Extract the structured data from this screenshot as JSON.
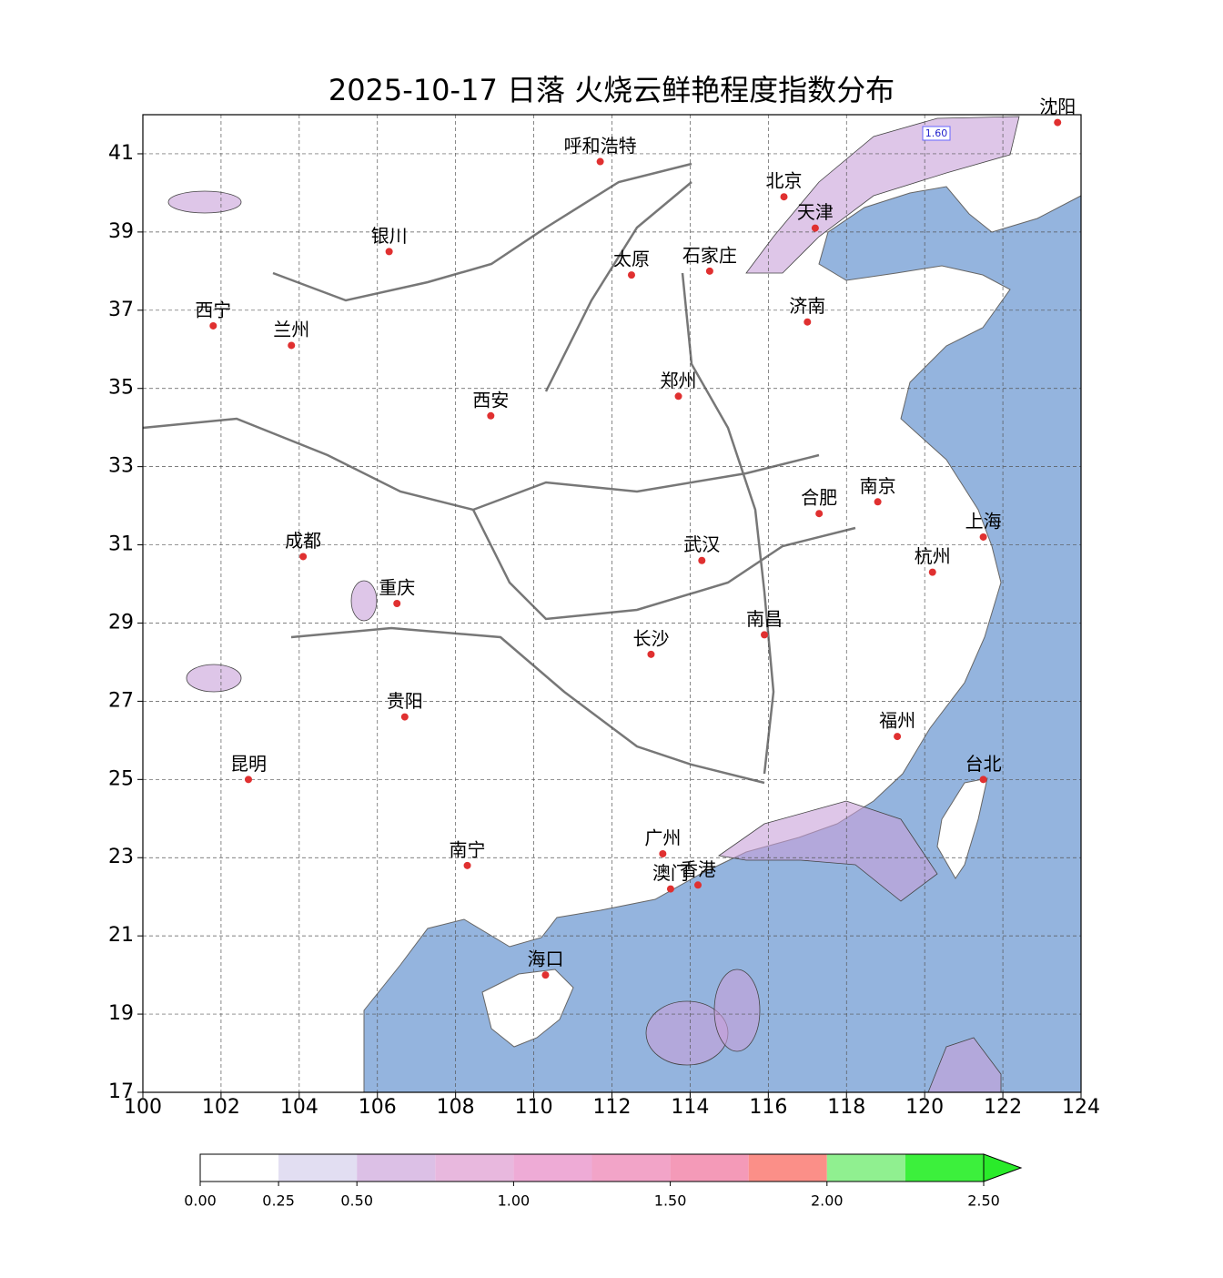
{
  "header": {
    "title": "2025-10-17 日落 火烧云鲜艳程度指数分布"
  },
  "map": {
    "xlim": [
      100,
      124
    ],
    "ylim": [
      17,
      42
    ],
    "xticks": [
      100,
      102,
      104,
      106,
      108,
      110,
      112,
      114,
      116,
      118,
      120,
      122,
      124
    ],
    "yticks": [
      17,
      19,
      21,
      23,
      25,
      27,
      29,
      31,
      33,
      35,
      37,
      39,
      41
    ],
    "annotation": "1.60",
    "cities": [
      {
        "name": "沈阳",
        "lon": 123.4,
        "lat": 41.8
      },
      {
        "name": "北京",
        "lon": 116.4,
        "lat": 39.9
      },
      {
        "name": "天津",
        "lon": 117.2,
        "lat": 39.1
      },
      {
        "name": "呼和浩特",
        "lon": 111.7,
        "lat": 40.8
      },
      {
        "name": "银川",
        "lon": 106.3,
        "lat": 38.5
      },
      {
        "name": "太原",
        "lon": 112.5,
        "lat": 37.9
      },
      {
        "name": "石家庄",
        "lon": 114.5,
        "lat": 38.0
      },
      {
        "name": "西宁",
        "lon": 101.8,
        "lat": 36.6
      },
      {
        "name": "兰州",
        "lon": 103.8,
        "lat": 36.1
      },
      {
        "name": "济南",
        "lon": 117.0,
        "lat": 36.7
      },
      {
        "name": "西安",
        "lon": 108.9,
        "lat": 34.3
      },
      {
        "name": "郑州",
        "lon": 113.7,
        "lat": 34.8
      },
      {
        "name": "合肥",
        "lon": 117.3,
        "lat": 31.8
      },
      {
        "name": "南京",
        "lon": 118.8,
        "lat": 32.1
      },
      {
        "name": "上海",
        "lon": 121.5,
        "lat": 31.2
      },
      {
        "name": "成都",
        "lon": 104.1,
        "lat": 30.7
      },
      {
        "name": "武汉",
        "lon": 114.3,
        "lat": 30.6
      },
      {
        "name": "杭州",
        "lon": 120.2,
        "lat": 30.3
      },
      {
        "name": "重庆",
        "lon": 106.5,
        "lat": 29.5
      },
      {
        "name": "长沙",
        "lon": 113.0,
        "lat": 28.2
      },
      {
        "name": "南昌",
        "lon": 115.9,
        "lat": 28.7
      },
      {
        "name": "贵阳",
        "lon": 106.7,
        "lat": 26.6
      },
      {
        "name": "福州",
        "lon": 119.3,
        "lat": 26.1
      },
      {
        "name": "昆明",
        "lon": 102.7,
        "lat": 25.0
      },
      {
        "name": "台北",
        "lon": 121.5,
        "lat": 25.0
      },
      {
        "name": "广州",
        "lon": 113.3,
        "lat": 23.1
      },
      {
        "name": "南宁",
        "lon": 108.3,
        "lat": 22.8
      },
      {
        "name": "澳门",
        "lon": 113.5,
        "lat": 22.2
      },
      {
        "name": "香港",
        "lon": 114.2,
        "lat": 22.3
      },
      {
        "name": "海口",
        "lon": 110.3,
        "lat": 20.0
      }
    ]
  },
  "colorbar": {
    "levels": [
      0,
      0.25,
      0.5,
      0.75,
      1.0,
      1.25,
      1.5,
      1.75,
      2.0,
      2.25
    ],
    "colors": [
      "#ffffff",
      "#e2def2",
      "#dcc0e6",
      "#e8b8de",
      "#eeabd6",
      "#f2a4c8",
      "#f49ab8",
      "#fb8f88",
      "#90f090",
      "#3cf03c"
    ],
    "extend_color": "#2aeb2a",
    "lim": [
      0,
      2.5
    ],
    "ticks": [
      {
        "value": 0,
        "label": "0.00"
      },
      {
        "value": 0.25,
        "label": "0.25"
      },
      {
        "value": 0.5,
        "label": "0.50"
      },
      {
        "value": 1.0,
        "label": "1.00"
      },
      {
        "value": 1.5,
        "label": "1.50"
      },
      {
        "value": 2.0,
        "label": "2.00"
      },
      {
        "value": 2.5,
        "label": "2.50"
      }
    ]
  }
}
